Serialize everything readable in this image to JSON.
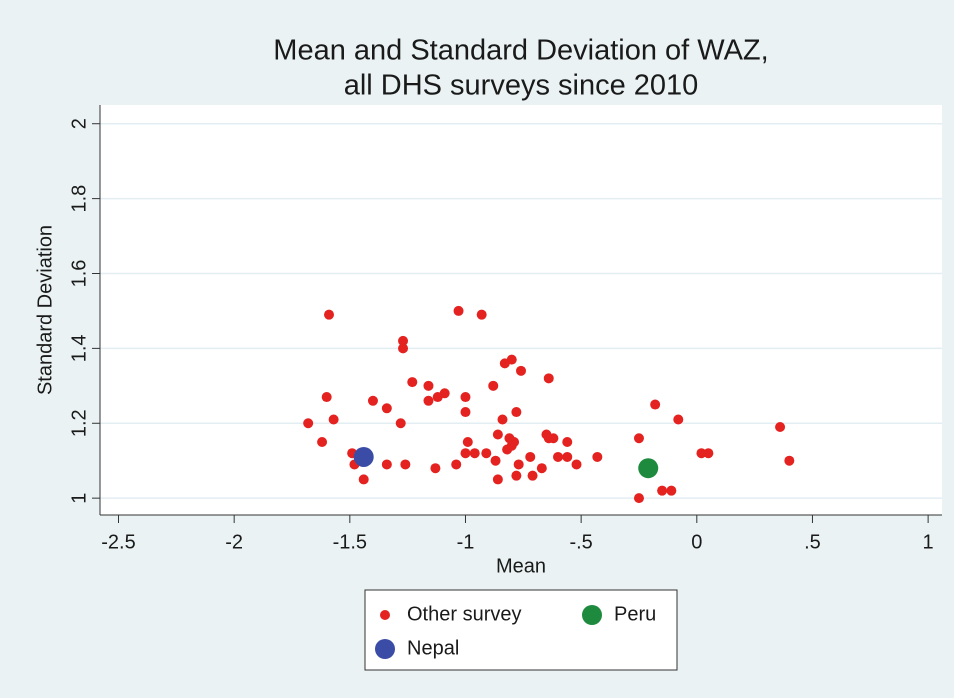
{
  "chart_data": {
    "type": "scatter",
    "title": [
      "Mean and Standard Deviation of WAZ,",
      "all DHS surveys since 2010"
    ],
    "x_label": "Mean",
    "y_label": "Standard Deviation",
    "xlim": [
      -2.58,
      1.06
    ],
    "ylim": [
      0.955,
      2.05
    ],
    "xticks": [
      {
        "value": -2.5,
        "label": "-2.5"
      },
      -2,
      {
        "value": -1.5,
        "label": "-1.5"
      },
      -1,
      {
        "value": -0.5,
        "label": "-.5"
      },
      0,
      {
        "value": 0.5,
        "label": ".5"
      },
      1
    ],
    "yticks": [
      1,
      1.2,
      1.4,
      1.6,
      1.8,
      2
    ],
    "grid": true,
    "series": [
      {
        "name": "Other survey",
        "color": "#e42320",
        "x": [
          -1.59,
          -1.03,
          -0.93,
          -1.27,
          -1.27,
          -0.8,
          -0.83,
          -0.76,
          -0.64,
          -1.23,
          -0.88,
          -1.16,
          -1.6,
          -1.09,
          -1.12,
          -1.0,
          -1.4,
          -1.16,
          -1.34,
          -0.18,
          -0.78,
          -1.0,
          -0.84,
          -1.57,
          -1.28,
          -0.08,
          -1.68,
          0.36,
          -0.65,
          -0.86,
          -0.81,
          -0.64,
          -0.62,
          -0.56,
          -0.25,
          -0.99,
          -1.62,
          -0.79,
          -0.8,
          -0.82,
          -0.96,
          -0.91,
          -1.49,
          -1.0,
          -0.6,
          -0.56,
          -0.43,
          0.02,
          0.05,
          -0.72,
          -0.87,
          0.4,
          -1.48,
          -1.34,
          -1.26,
          -0.77,
          -0.52,
          -1.04,
          -1.13,
          -0.67,
          -0.71,
          -0.78,
          -1.44,
          -0.86,
          -0.15,
          -0.11,
          -0.25
        ],
        "values": [
          1.49,
          1.5,
          1.49,
          1.42,
          1.4,
          1.37,
          1.36,
          1.34,
          1.32,
          1.31,
          1.3,
          1.3,
          1.27,
          1.28,
          1.27,
          1.27,
          1.26,
          1.26,
          1.24,
          1.25,
          1.23,
          1.23,
          1.21,
          1.21,
          1.2,
          1.21,
          1.2,
          1.19,
          1.17,
          1.17,
          1.16,
          1.16,
          1.16,
          1.15,
          1.16,
          1.15,
          1.15,
          1.15,
          1.14,
          1.13,
          1.12,
          1.12,
          1.12,
          1.12,
          1.11,
          1.11,
          1.11,
          1.12,
          1.12,
          1.11,
          1.1,
          1.1,
          1.09,
          1.09,
          1.09,
          1.09,
          1.09,
          1.09,
          1.08,
          1.08,
          1.06,
          1.06,
          1.05,
          1.05,
          1.02,
          1.02,
          1.0
        ]
      },
      {
        "name": "Nepal",
        "color": "#3b4ca6",
        "x": [
          -1.44
        ],
        "values": [
          1.11
        ]
      },
      {
        "name": "Peru",
        "color": "#1e8a3e",
        "x": [
          -0.21
        ],
        "values": [
          1.08
        ]
      }
    ]
  }
}
